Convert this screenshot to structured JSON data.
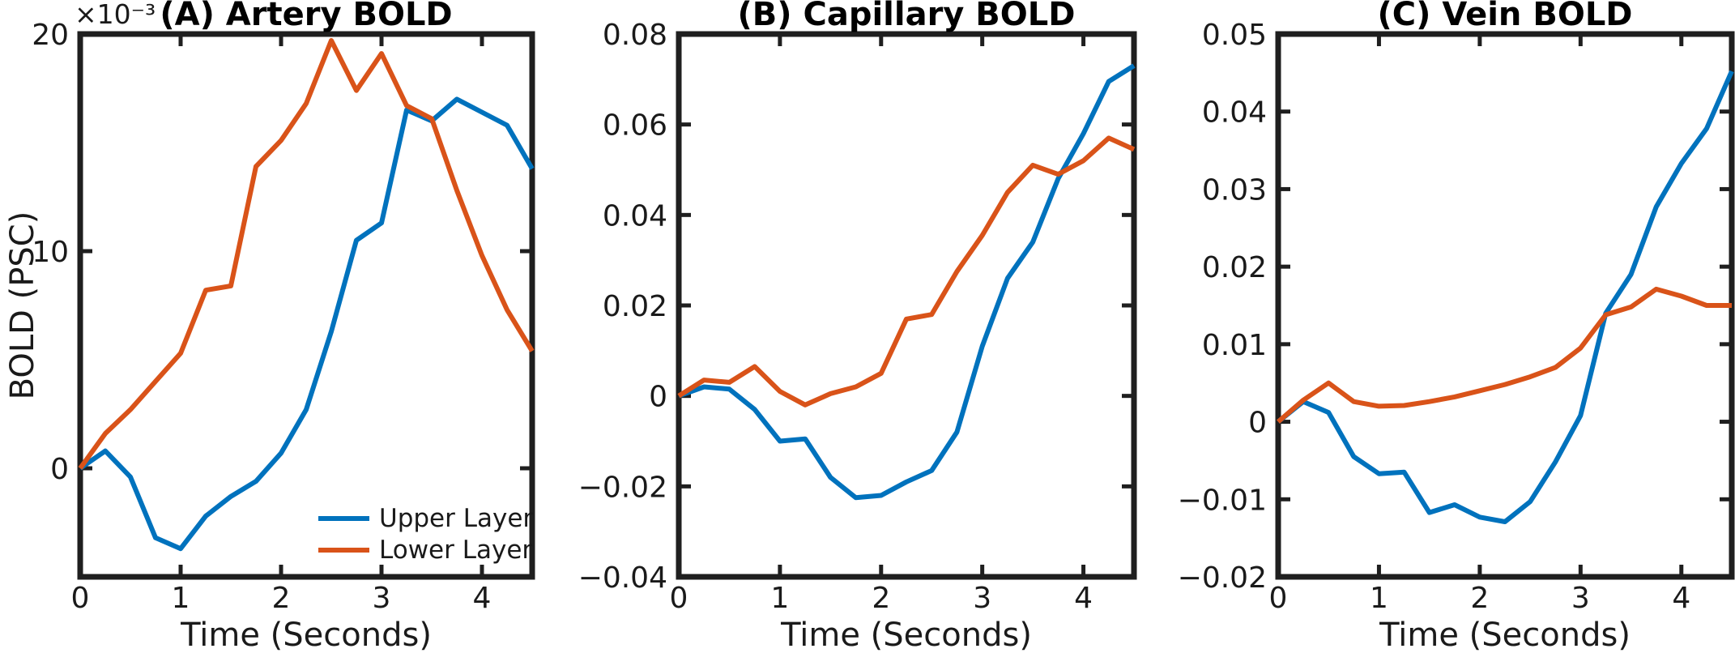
{
  "figure": {
    "background": "#ffffff",
    "spine_color": "#1f1f1f",
    "text_color": "#1a1a1a",
    "legend": {
      "position": "lower right of panel A",
      "entries": [
        {
          "label": "Upper Layer",
          "color": "#0072BD"
        },
        {
          "label": "Lower Layer",
          "color": "#D95319"
        }
      ]
    }
  },
  "chart_data": [
    {
      "type": "line",
      "panel": "A",
      "title": "(A) Artery BOLD",
      "xlabel": "Time (Seconds)",
      "ylabel": "BOLD (PSC)",
      "offset_label": "×10⁻³",
      "grid": false,
      "xlim": [
        0,
        4.5
      ],
      "ylim": [
        -0.005,
        0.02
      ],
      "xticks": [
        0,
        1,
        2,
        3,
        4
      ],
      "xtick_labels": [
        "0",
        "1",
        "2",
        "3",
        "4"
      ],
      "yticks": [
        0,
        0.01,
        0.02
      ],
      "ytick_labels": [
        "0",
        "10",
        "20"
      ],
      "x": [
        0,
        0.25,
        0.5,
        0.75,
        1,
        1.25,
        1.5,
        1.75,
        2,
        2.25,
        2.5,
        2.75,
        3,
        3.25,
        3.5,
        3.75,
        4,
        4.25,
        4.5
      ],
      "series": [
        {
          "name": "Upper Layer",
          "color": "#0072BD",
          "values": [
            0,
            0.0008,
            -0.0004,
            -0.0032,
            -0.0037,
            -0.0022,
            -0.0013,
            -0.0006,
            0.0007,
            0.0027,
            0.0063,
            0.0105,
            0.0113,
            0.0165,
            0.016,
            0.017,
            0.0164,
            0.0158,
            0.0138
          ]
        },
        {
          "name": "Lower Layer",
          "color": "#D95319",
          "values": [
            0,
            0.0016,
            0.0027,
            0.004,
            0.0053,
            0.0082,
            0.0084,
            0.0139,
            0.0151,
            0.0168,
            0.0197,
            0.0174,
            0.0191,
            0.0167,
            0.0161,
            0.0128,
            0.0098,
            0.0073,
            0.0054
          ]
        }
      ]
    },
    {
      "type": "line",
      "panel": "B",
      "title": "(B) Capillary BOLD",
      "xlabel": "Time (Seconds)",
      "ylabel": "",
      "offset_label": "",
      "grid": false,
      "xlim": [
        0,
        4.5
      ],
      "ylim": [
        -0.04,
        0.08
      ],
      "xticks": [
        0,
        1,
        2,
        3,
        4
      ],
      "xtick_labels": [
        "0",
        "1",
        "2",
        "3",
        "4"
      ],
      "yticks": [
        -0.04,
        -0.02,
        0,
        0.02,
        0.04,
        0.06,
        0.08
      ],
      "ytick_labels": [
        "−0.04",
        "−0.02",
        "0",
        "0.02",
        "0.04",
        "0.06",
        "0.08"
      ],
      "x": [
        0,
        0.25,
        0.5,
        0.75,
        1,
        1.25,
        1.5,
        1.75,
        2,
        2.25,
        2.5,
        2.75,
        3,
        3.25,
        3.5,
        3.75,
        4,
        4.25,
        4.5
      ],
      "series": [
        {
          "name": "Upper Layer",
          "color": "#0072BD",
          "values": [
            0,
            0.002,
            0.0015,
            -0.003,
            -0.01,
            -0.0095,
            -0.018,
            -0.0225,
            -0.022,
            -0.019,
            -0.0165,
            -0.008,
            0.011,
            0.026,
            0.034,
            0.048,
            0.058,
            0.0695,
            0.073
          ]
        },
        {
          "name": "Lower Layer",
          "color": "#D95319",
          "values": [
            0,
            0.0035,
            0.003,
            0.0065,
            0.001,
            -0.002,
            0.0005,
            0.002,
            0.005,
            0.017,
            0.018,
            0.0275,
            0.0355,
            0.045,
            0.051,
            0.049,
            0.052,
            0.057,
            0.0545
          ]
        }
      ]
    },
    {
      "type": "line",
      "panel": "C",
      "title": "(C) Vein BOLD",
      "xlabel": "Time (Seconds)",
      "ylabel": "",
      "offset_label": "",
      "grid": false,
      "xlim": [
        0,
        4.5
      ],
      "ylim": [
        -0.02,
        0.05
      ],
      "xticks": [
        0,
        1,
        2,
        3,
        4
      ],
      "xtick_labels": [
        "0",
        "1",
        "2",
        "3",
        "4"
      ],
      "yticks": [
        -0.02,
        -0.01,
        0,
        0.01,
        0.02,
        0.03,
        0.04,
        0.05
      ],
      "ytick_labels": [
        "−0.02",
        "−0.01",
        "0",
        "0.01",
        "0.02",
        "0.03",
        "0.04",
        "0.05"
      ],
      "x": [
        0,
        0.25,
        0.5,
        0.75,
        1,
        1.25,
        1.5,
        1.75,
        2,
        2.25,
        2.5,
        2.75,
        3,
        3.25,
        3.5,
        3.75,
        4,
        4.25,
        4.5
      ],
      "series": [
        {
          "name": "Upper Layer",
          "color": "#0072BD",
          "values": [
            0,
            0.0026,
            0.0012,
            -0.0045,
            -0.0067,
            -0.0065,
            -0.0117,
            -0.0107,
            -0.0123,
            -0.0129,
            -0.0103,
            -0.0052,
            0.0008,
            0.014,
            0.019,
            0.0277,
            0.0333,
            0.0378,
            0.0452
          ]
        },
        {
          "name": "Lower Layer",
          "color": "#D95319",
          "values": [
            0,
            0.0028,
            0.005,
            0.0026,
            0.002,
            0.0021,
            0.0026,
            0.0032,
            0.004,
            0.0048,
            0.0058,
            0.007,
            0.0095,
            0.0138,
            0.0148,
            0.0171,
            0.0162,
            0.015,
            0.015
          ]
        }
      ]
    }
  ]
}
